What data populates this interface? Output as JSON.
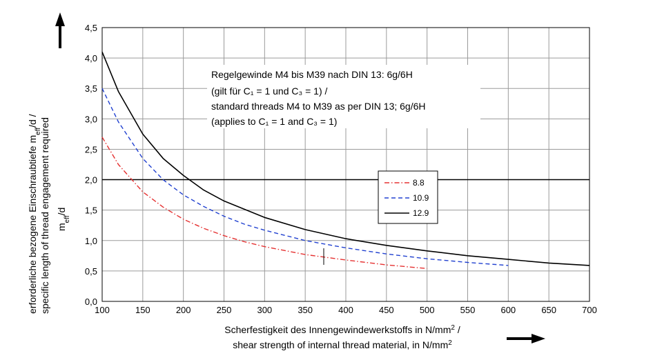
{
  "chart_data": {
    "type": "line",
    "xlabel": {
      "line1": "Scherfestigkeit des Innengewindewerkstoffs in N/mm",
      "line1_sup": "2",
      "line1_suffix": " /",
      "line2": "shear strength of internal thread material, in N/mm",
      "line2_sup": "2"
    },
    "ylabel": {
      "line1": "erforderliche bezogene Einschraubtiefe m",
      "line1_sub": "eff",
      "line1_suffix": "/d /",
      "line2": "specific length of thread engagement required",
      "line3": "m",
      "line3_sub": "eff",
      "line3_suffix": "/d"
    },
    "xlim": [
      100,
      700
    ],
    "ylim": [
      0,
      4.5
    ],
    "xticks": [
      100,
      150,
      200,
      250,
      300,
      350,
      400,
      450,
      500,
      550,
      600,
      650,
      700
    ],
    "yticks": [
      0,
      0.5,
      1,
      1.5,
      2,
      2.5,
      3,
      3.5,
      4,
      4.5
    ],
    "ytick_labels": [
      "0,0",
      "0,5",
      "1,0",
      "1,5",
      "2,0",
      "2,5",
      "3,0",
      "3,5",
      "4,0",
      "4,5"
    ],
    "grid": true,
    "reference_line_y": 2.0,
    "legend_position": "center-right",
    "annotation": {
      "line1": "Regelgewinde M4 bis M39 nach DIN 13: 6g/6H",
      "line2": "(gilt für C₁ = 1 und C₃ = 1) /",
      "line3": "standard threads M4 to M39 as per DIN 13; 6g/6H",
      "line4": "(applies to C₁ = 1 and C₃ = 1)"
    },
    "series": [
      {
        "name": "8.8",
        "color": "#e53030",
        "dash": "dashdot",
        "x": [
          100,
          120,
          150,
          175,
          200,
          225,
          250,
          275,
          300,
          350,
          400,
          450,
          500
        ],
        "y": [
          2.7,
          2.25,
          1.8,
          1.55,
          1.35,
          1.2,
          1.08,
          0.98,
          0.9,
          0.77,
          0.68,
          0.6,
          0.54
        ]
      },
      {
        "name": "10.9",
        "color": "#2040d0",
        "dash": "dashed",
        "x": [
          100,
          120,
          150,
          175,
          200,
          225,
          250,
          275,
          300,
          350,
          400,
          450,
          500,
          550,
          600
        ],
        "y": [
          3.5,
          2.95,
          2.35,
          2.0,
          1.75,
          1.56,
          1.4,
          1.27,
          1.17,
          1.0,
          0.88,
          0.78,
          0.7,
          0.64,
          0.59
        ]
      },
      {
        "name": "12.9",
        "color": "#000000",
        "dash": "solid",
        "x": [
          100,
          120,
          150,
          175,
          200,
          225,
          250,
          300,
          350,
          400,
          450,
          500,
          550,
          600,
          650,
          700
        ],
        "y": [
          4.1,
          3.45,
          2.75,
          2.35,
          2.07,
          1.83,
          1.65,
          1.38,
          1.18,
          1.03,
          0.92,
          0.83,
          0.75,
          0.69,
          0.63,
          0.59
        ]
      }
    ]
  }
}
